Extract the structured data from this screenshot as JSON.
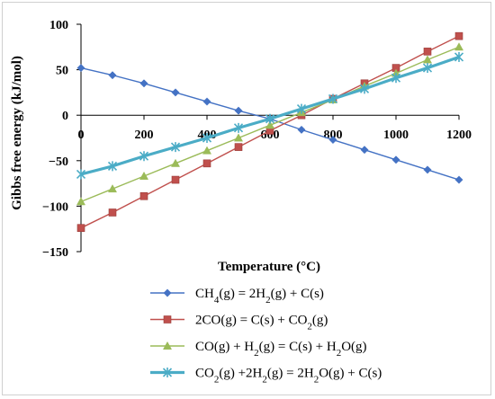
{
  "chart_data": {
    "type": "line",
    "xlabel": "Temperature (°C)",
    "ylabel": "Gibbs free energy (kJ/mol)",
    "xlim": [
      0,
      1200
    ],
    "ylim": [
      -150,
      100
    ],
    "xticks": [
      0,
      200,
      400,
      600,
      800,
      1000,
      1200
    ],
    "yticks": [
      100,
      50,
      0,
      -50,
      -100,
      -150
    ],
    "x": [
      0,
      100,
      200,
      300,
      400,
      500,
      600,
      700,
      800,
      900,
      1000,
      1100,
      1200
    ],
    "grid": false,
    "legend_position": "bottom",
    "series": [
      {
        "name": "CH4(g) = 2H2(g) + C(s)",
        "name_parts": [
          [
            "CH",
            ""
          ],
          [
            "4",
            "sub"
          ],
          [
            "(g) = 2H",
            ""
          ],
          [
            "2",
            "sub"
          ],
          [
            "(g) + C(s)",
            ""
          ]
        ],
        "color": "#4472C4",
        "marker": "diamond",
        "values": [
          52,
          44,
          35,
          25,
          15,
          5,
          -4,
          -16,
          -27,
          -38,
          -49,
          -60,
          -71
        ]
      },
      {
        "name": "2CO(g) = C(s) + CO2(g)",
        "name_parts": [
          [
            "2CO(g) = C(s) + CO",
            ""
          ],
          [
            "2",
            "sub"
          ],
          [
            "(g)",
            ""
          ]
        ],
        "color": "#C0504D",
        "marker": "square",
        "values": [
          -124,
          -107,
          -89,
          -71,
          -53,
          -35,
          -17,
          0,
          18,
          35,
          52,
          70,
          87
        ]
      },
      {
        "name": "CO(g) + H2(g) = C(s) + H2O(g)",
        "name_parts": [
          [
            "CO(g) + H",
            ""
          ],
          [
            "2",
            "sub"
          ],
          [
            "(g) = C(s) + H",
            ""
          ],
          [
            "2",
            "sub"
          ],
          [
            "O(g)",
            ""
          ]
        ],
        "color": "#9BBB59",
        "marker": "triangle",
        "values": [
          -95,
          -81,
          -67,
          -53,
          -39,
          -25,
          -11,
          3,
          17,
          32,
          46,
          61,
          75
        ]
      },
      {
        "name": "CO2(g) +2H2(g) = 2H2O(g) + C(s)",
        "name_parts": [
          [
            "CO",
            ""
          ],
          [
            "2",
            "sub"
          ],
          [
            "(g) +2H",
            ""
          ],
          [
            "2",
            "sub"
          ],
          [
            "(g) = 2H",
            ""
          ],
          [
            "2",
            "sub"
          ],
          [
            "O(g) + C(s)",
            ""
          ]
        ],
        "color": "#4BACC6",
        "marker": "asterisk",
        "values": [
          -65,
          -56,
          -45,
          -35,
          -25,
          -14,
          -4,
          7,
          18,
          29,
          41,
          52,
          64
        ]
      }
    ]
  }
}
